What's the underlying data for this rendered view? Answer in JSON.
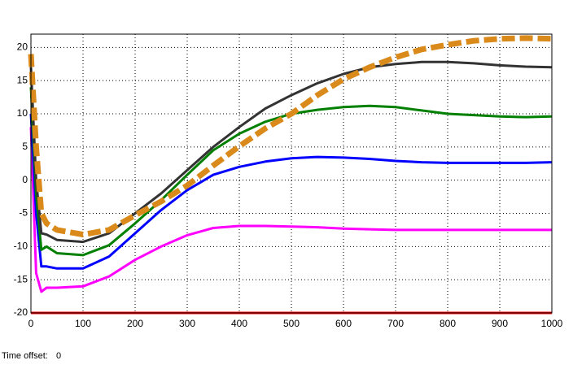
{
  "chart_data": {
    "type": "line",
    "x": [
      0,
      10,
      20,
      30,
      50,
      100,
      150,
      200,
      250,
      300,
      350,
      400,
      450,
      500,
      550,
      600,
      650,
      700,
      750,
      800,
      850,
      900,
      950,
      1000
    ],
    "series": [
      {
        "color": "#ff0000",
        "linestyle": "solid",
        "values": [
          -20,
          -20,
          -20,
          -20,
          -20,
          -20,
          -20,
          -20,
          -20,
          -20,
          -20,
          -20,
          -20,
          -20,
          -20,
          -20,
          -20,
          -20,
          -20,
          -20,
          -20,
          -20,
          -20,
          -20
        ]
      },
      {
        "color": "#ff00ff",
        "linestyle": "solid",
        "values": [
          8,
          -14,
          -16.8,
          -16.2,
          -16.2,
          -16,
          -14.5,
          -12,
          -10,
          -8.3,
          -7.2,
          -6.9,
          -6.9,
          -7,
          -7.1,
          -7.3,
          -7.4,
          -7.5,
          -7.5,
          -7.5,
          -7.5,
          -7.5,
          -7.5,
          -7.5
        ]
      },
      {
        "color": "#0000ff",
        "linestyle": "solid",
        "values": [
          10,
          -5,
          -13,
          -13,
          -13.3,
          -13.3,
          -11.5,
          -8,
          -4.5,
          -1.5,
          0.8,
          2,
          2.8,
          3.3,
          3.5,
          3.4,
          3.2,
          2.9,
          2.7,
          2.6,
          2.6,
          2.6,
          2.6,
          2.7
        ]
      },
      {
        "color": "#008000",
        "linestyle": "solid",
        "values": [
          14,
          -2,
          -10.5,
          -10,
          -11,
          -11.3,
          -9.8,
          -6.5,
          -3,
          0.8,
          4.5,
          7,
          8.8,
          10,
          10.6,
          11,
          11.2,
          11,
          10.5,
          10,
          9.8,
          9.6,
          9.5,
          9.6
        ]
      },
      {
        "color": "#333333",
        "linestyle": "solid",
        "values": [
          17,
          0,
          -8,
          -8.2,
          -9,
          -9.3,
          -8,
          -5,
          -2,
          1.5,
          5,
          8,
          10.8,
          12.8,
          14.6,
          16,
          17,
          17.5,
          17.8,
          17.8,
          17.6,
          17.3,
          17.1,
          17
        ]
      },
      {
        "color": "#d98a1a",
        "linestyle": "dashed",
        "values": [
          19,
          5,
          -5,
          -6.5,
          -7.5,
          -8.2,
          -7.5,
          -5.3,
          -3.2,
          -0.8,
          2.2,
          5.1,
          7.8,
          10,
          12.8,
          15.2,
          17,
          18.5,
          19.7,
          20.4,
          21,
          21.3,
          21.4,
          21.3
        ]
      }
    ],
    "xlim": [
      0,
      1000
    ],
    "xticks": [
      0,
      100,
      200,
      300,
      400,
      500,
      600,
      700,
      800,
      900,
      1000
    ],
    "ylim": [
      -20,
      22
    ],
    "yticks": [
      -20,
      -15,
      -10,
      -5,
      0,
      5,
      10,
      15,
      20
    ],
    "grid": true,
    "time_offset": {
      "label": "Time offset:",
      "value": 0
    }
  }
}
